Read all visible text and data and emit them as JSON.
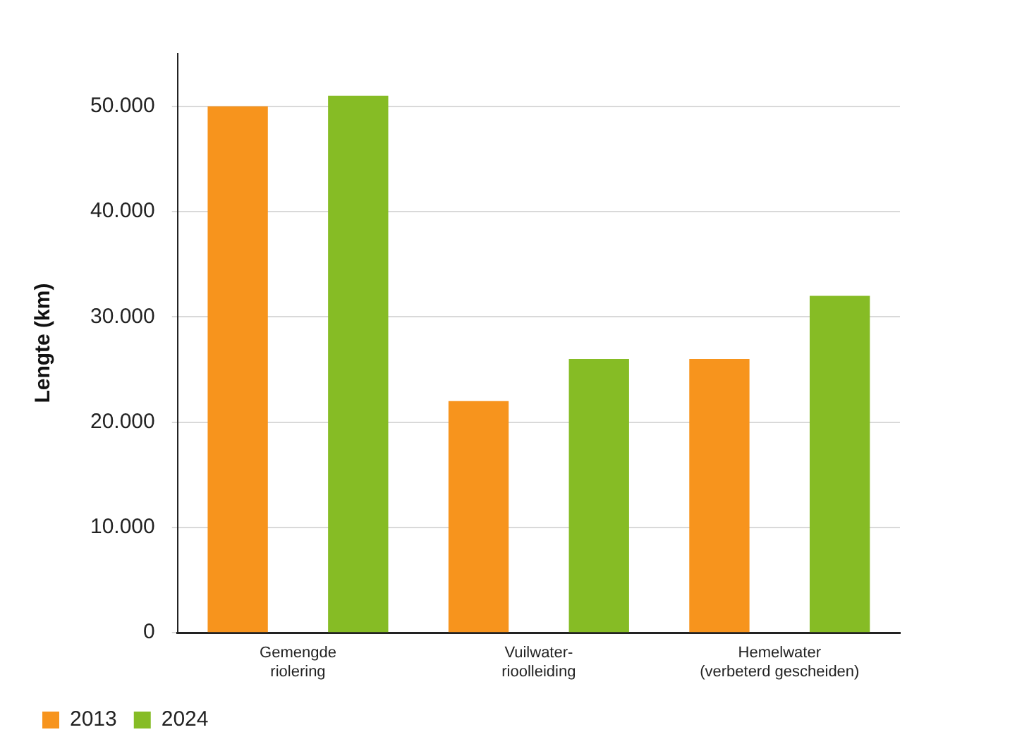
{
  "chart_data": {
    "type": "bar",
    "ylabel": "Lengte (km)",
    "categories": [
      "Gemengde riolering",
      "Vuilwater-rioolleiding",
      "Hemelwater (verbeterd gescheiden)"
    ],
    "series": [
      {
        "name": "2013",
        "color": "#f7941d",
        "values": [
          50000,
          22000,
          26000
        ]
      },
      {
        "name": "2024",
        "color": "#86bc25",
        "values": [
          51000,
          26000,
          32000
        ]
      }
    ],
    "ylim": [
      0,
      55000
    ],
    "yticks": [
      {
        "value": 0,
        "label": "0"
      },
      {
        "value": 10000,
        "label": "10.000"
      },
      {
        "value": 20000,
        "label": "20.000"
      },
      {
        "value": 30000,
        "label": "30.000"
      },
      {
        "value": 40000,
        "label": "40.000"
      },
      {
        "value": 50000,
        "label": "50.000"
      }
    ],
    "grid": "y",
    "legend": "bottom left"
  }
}
